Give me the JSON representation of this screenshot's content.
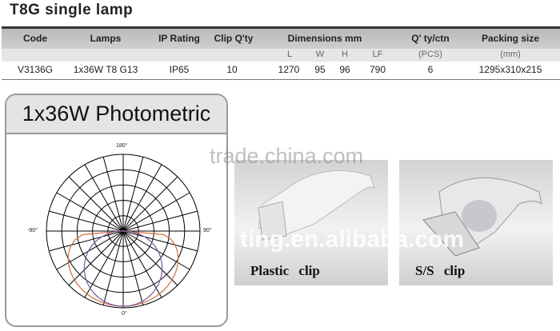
{
  "title": "T8G single lamp",
  "table": {
    "headers": {
      "code": "Code",
      "lamps": "Lamps",
      "ip": "IP Rating",
      "clip": "Clip Q'ty",
      "dims": "Dimensions  mm",
      "qty": "Q' ty/ctn",
      "packing": "Packing size"
    },
    "subheaders": {
      "l": "L",
      "w": "W",
      "h": "H",
      "lf": "LF",
      "qty": "(PCS)",
      "packing": "(mm)"
    },
    "row": {
      "code": "V3136G",
      "lamps": "1x36W  T8  G13",
      "ip": "IP65",
      "clip": "10",
      "l": "1270",
      "w": "95",
      "h": "96",
      "lf": "790",
      "qty": "6",
      "packing": "1295x310x215"
    }
  },
  "photometric": {
    "title": "1x36W Photometric",
    "labels": {
      "top": "180°",
      "left": "-90°",
      "right": "90°",
      "bottom": "0°"
    },
    "colors": {
      "c0": "#d0703a",
      "c90": "#7a5a9a",
      "grid": "#000000"
    }
  },
  "clips": [
    {
      "caption": "Plastic  clip"
    },
    {
      "caption": "S/S  clip"
    }
  ],
  "watermarks": [
    "trade.china.com",
    "ting.en.alibaba.com"
  ]
}
